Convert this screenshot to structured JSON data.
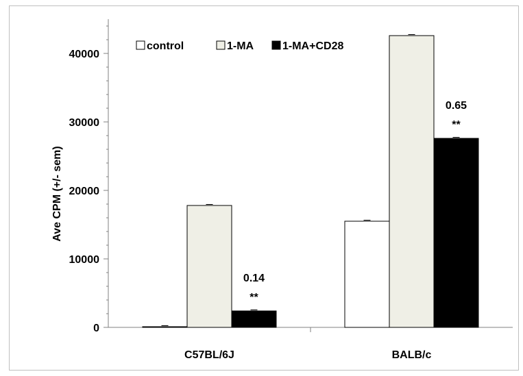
{
  "chart_data": {
    "type": "bar",
    "ylabel": "Ave CPM (+/- sem)",
    "ylim": [
      0,
      45000
    ],
    "yticks": [
      "0",
      "10000",
      "20000",
      "30000",
      "40000"
    ],
    "categories": [
      "C57BL/6J",
      "BALB/c"
    ],
    "series": [
      {
        "name": "control",
        "values": [
          100,
          15500
        ],
        "color": "#ffffff"
      },
      {
        "name": "1-MA",
        "values": [
          17800,
          42600
        ],
        "color": "#efefe6"
      },
      {
        "name": "1-MA+CD28",
        "values": [
          2400,
          27600
        ],
        "color": "#000000"
      }
    ],
    "annotations": [
      {
        "category": "C57BL/6J",
        "series": "1-MA+CD28",
        "value_text": "0.14",
        "sig_text": "**"
      },
      {
        "category": "BALB/c",
        "series": "1-MA+CD28",
        "value_text": "0.65",
        "sig_text": "**"
      }
    ],
    "legend": "top-left",
    "grid": false
  }
}
